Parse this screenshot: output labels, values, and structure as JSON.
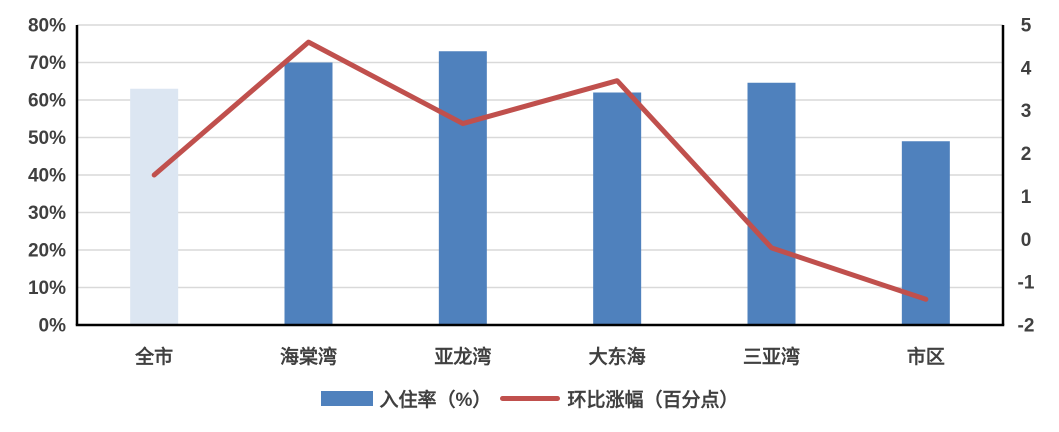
{
  "chart_data": {
    "type": "combo-bar-line",
    "categories": [
      "全市",
      "海棠湾",
      "亚龙湾",
      "大东海",
      "三亚湾",
      "市区"
    ],
    "series": [
      {
        "name": "入住率（%）",
        "type": "bar",
        "axis": "left",
        "values": [
          63,
          70,
          73,
          62,
          64.6,
          49
        ],
        "color": "#4F81BD",
        "point_colors": [
          "#DCE6F2",
          "#4F81BD",
          "#4F81BD",
          "#4F81BD",
          "#4F81BD",
          "#4F81BD"
        ]
      },
      {
        "name": "环比涨幅（百分点）",
        "type": "line",
        "axis": "right",
        "values": [
          1.5,
          4.6,
          2.7,
          3.7,
          -0.2,
          -1.4
        ],
        "color": "#C0504D"
      }
    ],
    "left_axis": {
      "min": 0,
      "max": 80,
      "step": 10,
      "tick_labels": [
        "0%",
        "10%",
        "20%",
        "30%",
        "40%",
        "50%",
        "60%",
        "70%",
        "80%"
      ]
    },
    "right_axis": {
      "min": -2,
      "max": 5,
      "step": 1,
      "tick_labels": [
        "-2",
        "-1",
        "0",
        "1",
        "2",
        "3",
        "4",
        "5"
      ]
    },
    "grid": true,
    "legend_position": "bottom"
  },
  "styles": {
    "grid_color": "#D9D9D9",
    "axis_line_color": "#000000",
    "text_color": "#404040",
    "background": "#FFFFFF"
  }
}
